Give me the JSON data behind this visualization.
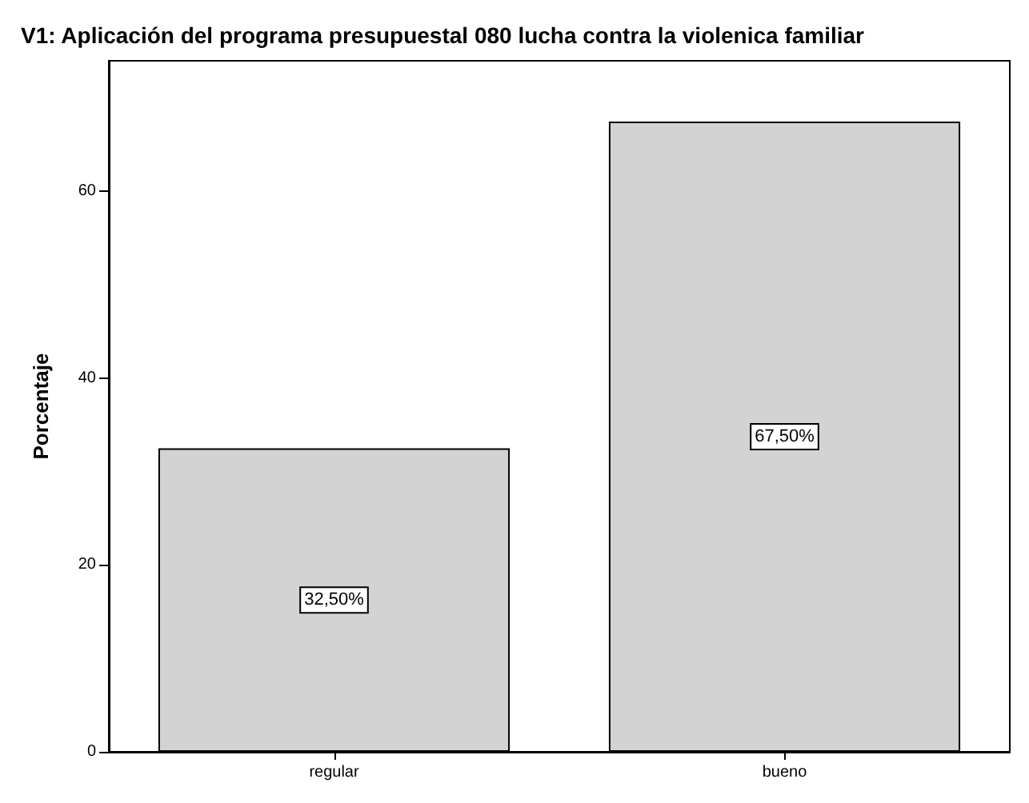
{
  "chart_data": {
    "type": "bar",
    "title": "V1: Aplicación del programa presupuestal 080 lucha contra la violenica familiar",
    "ylabel": "Porcentaje",
    "categories": [
      "regular",
      "bueno"
    ],
    "values": [
      32.5,
      67.5
    ],
    "value_labels": [
      "32,50%",
      "67,50%"
    ],
    "color": "#d3d3d3",
    "ylim": [
      0,
      74
    ],
    "yticks": [
      0,
      20,
      40,
      60
    ],
    "grid": false
  }
}
